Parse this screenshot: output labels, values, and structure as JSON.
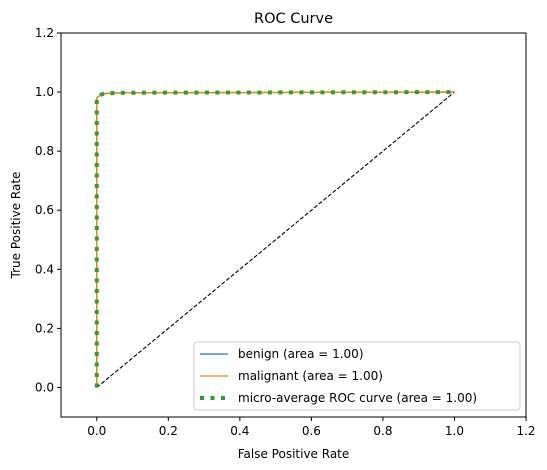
{
  "chart_data": {
    "type": "line",
    "title": "ROC Curve",
    "xlabel": "False Positive Rate",
    "ylabel": "True Positive Rate",
    "xlim": [
      -0.1,
      1.2
    ],
    "ylim": [
      -0.1,
      1.2
    ],
    "xticks": [
      0.0,
      0.2,
      0.4,
      0.6,
      0.8,
      1.0,
      1.2
    ],
    "yticks": [
      0.0,
      0.2,
      0.4,
      0.6,
      0.8,
      1.0,
      1.2
    ],
    "xtick_labels": [
      "0.0",
      "0.2",
      "0.4",
      "0.6",
      "0.8",
      "1.0",
      "1.2"
    ],
    "ytick_labels": [
      "0.0",
      "0.2",
      "0.4",
      "0.6",
      "0.8",
      "1.0",
      "1.2"
    ],
    "grid": false,
    "legend_position": "lower-right",
    "series": [
      {
        "name": "benign (area = 1.00)",
        "color": "#1f77b4",
        "style": "solid",
        "x": [
          0.0,
          0.0,
          0.01,
          0.02,
          0.05,
          0.14,
          1.0
        ],
        "y": [
          0.0,
          0.98,
          0.99,
          0.995,
          0.997,
          0.998,
          1.0
        ]
      },
      {
        "name": "malignant (area = 1.00)",
        "color": "#ff7f0e",
        "style": "solid",
        "x": [
          0.0,
          0.0,
          0.01,
          0.02,
          0.05,
          0.14,
          1.0
        ],
        "y": [
          0.0,
          0.98,
          0.99,
          0.995,
          0.997,
          0.998,
          1.0
        ]
      },
      {
        "name": "micro-average ROC curve (area = 1.00)",
        "color": "#2ca02c",
        "style": "dotted",
        "x": [
          0.0,
          0.0,
          0.01,
          0.02,
          0.05,
          0.14,
          1.0
        ],
        "y": [
          0.0,
          0.98,
          0.99,
          0.995,
          0.997,
          0.998,
          1.0
        ]
      }
    ],
    "reference_line": {
      "color": "#000000",
      "style": "dashed",
      "x": [
        0.0,
        1.0
      ],
      "y": [
        0.0,
        1.0
      ]
    }
  }
}
